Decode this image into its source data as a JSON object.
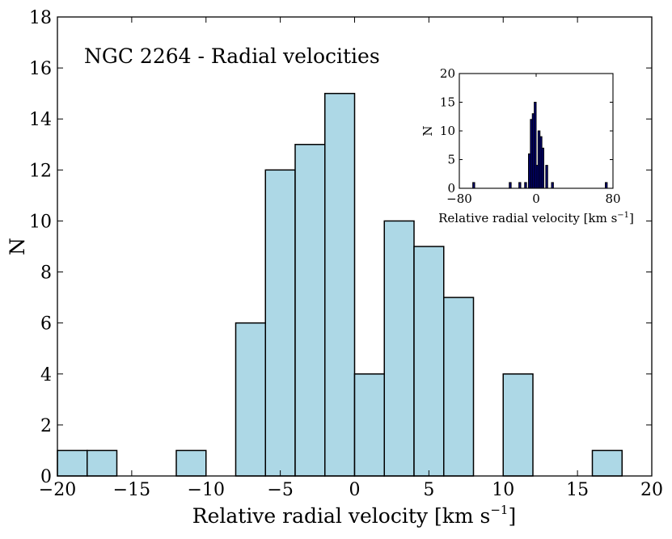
{
  "chart_data": [
    {
      "type": "bar",
      "title": "NGC 2264 - Radial velocities",
      "xlabel": "Relative radial velocity [km s",
      "xlabel_unit_exponent": "−1",
      "xlabel_close": "]",
      "ylabel": "N",
      "xlim": [
        -20,
        20
      ],
      "ylim": [
        0,
        18
      ],
      "bin_width": 2,
      "bins": [
        {
          "left": -20,
          "value": 1
        },
        {
          "left": -18,
          "value": 1
        },
        {
          "left": -12,
          "value": 1
        },
        {
          "left": -8,
          "value": 6
        },
        {
          "left": -6,
          "value": 12
        },
        {
          "left": -4,
          "value": 13
        },
        {
          "left": -2,
          "value": 15
        },
        {
          "left": 0,
          "value": 4
        },
        {
          "left": 2,
          "value": 10
        },
        {
          "left": 4,
          "value": 9
        },
        {
          "left": 6,
          "value": 7
        },
        {
          "left": 10,
          "value": 4
        },
        {
          "left": 16,
          "value": 1
        }
      ],
      "xticks": [
        -20,
        -15,
        -10,
        -5,
        0,
        5,
        10,
        15,
        20
      ],
      "xtick_labels": [
        "−20",
        "−15",
        "−10",
        "−5",
        "0",
        "5",
        "10",
        "15",
        "20"
      ],
      "yticks": [
        0,
        2,
        4,
        6,
        8,
        10,
        12,
        14,
        16,
        18
      ],
      "ytick_labels": [
        "0",
        "2",
        "4",
        "6",
        "8",
        "10",
        "12",
        "14",
        "16",
        "18"
      ],
      "bar_color": "#add8e6",
      "edge_color": "#000000"
    },
    {
      "type": "bar",
      "title": "",
      "xlabel": "Relative radial velocity [km s",
      "xlabel_unit_exponent": "−1",
      "xlabel_close": "]",
      "ylabel": "N",
      "xlim": [
        -80,
        80
      ],
      "ylim": [
        0,
        20
      ],
      "bin_width": 2,
      "bins": [
        {
          "left": -66,
          "value": 1
        },
        {
          "left": -28,
          "value": 1
        },
        {
          "left": -18,
          "value": 1
        },
        {
          "left": -12,
          "value": 1
        },
        {
          "left": -8,
          "value": 6
        },
        {
          "left": -6,
          "value": 12
        },
        {
          "left": -4,
          "value": 13
        },
        {
          "left": -2,
          "value": 15
        },
        {
          "left": 0,
          "value": 4
        },
        {
          "left": 2,
          "value": 10
        },
        {
          "left": 4,
          "value": 9
        },
        {
          "left": 6,
          "value": 7
        },
        {
          "left": 10,
          "value": 4
        },
        {
          "left": 16,
          "value": 1
        },
        {
          "left": 72,
          "value": 1
        }
      ],
      "xticks": [
        -80,
        0,
        80
      ],
      "xtick_labels": [
        "−80",
        "0",
        "80"
      ],
      "yticks": [
        0,
        5,
        10,
        15,
        20
      ],
      "ytick_labels": [
        "0",
        "5",
        "10",
        "15",
        "20"
      ],
      "bar_color": "#000080",
      "edge_color": "#000000"
    }
  ]
}
